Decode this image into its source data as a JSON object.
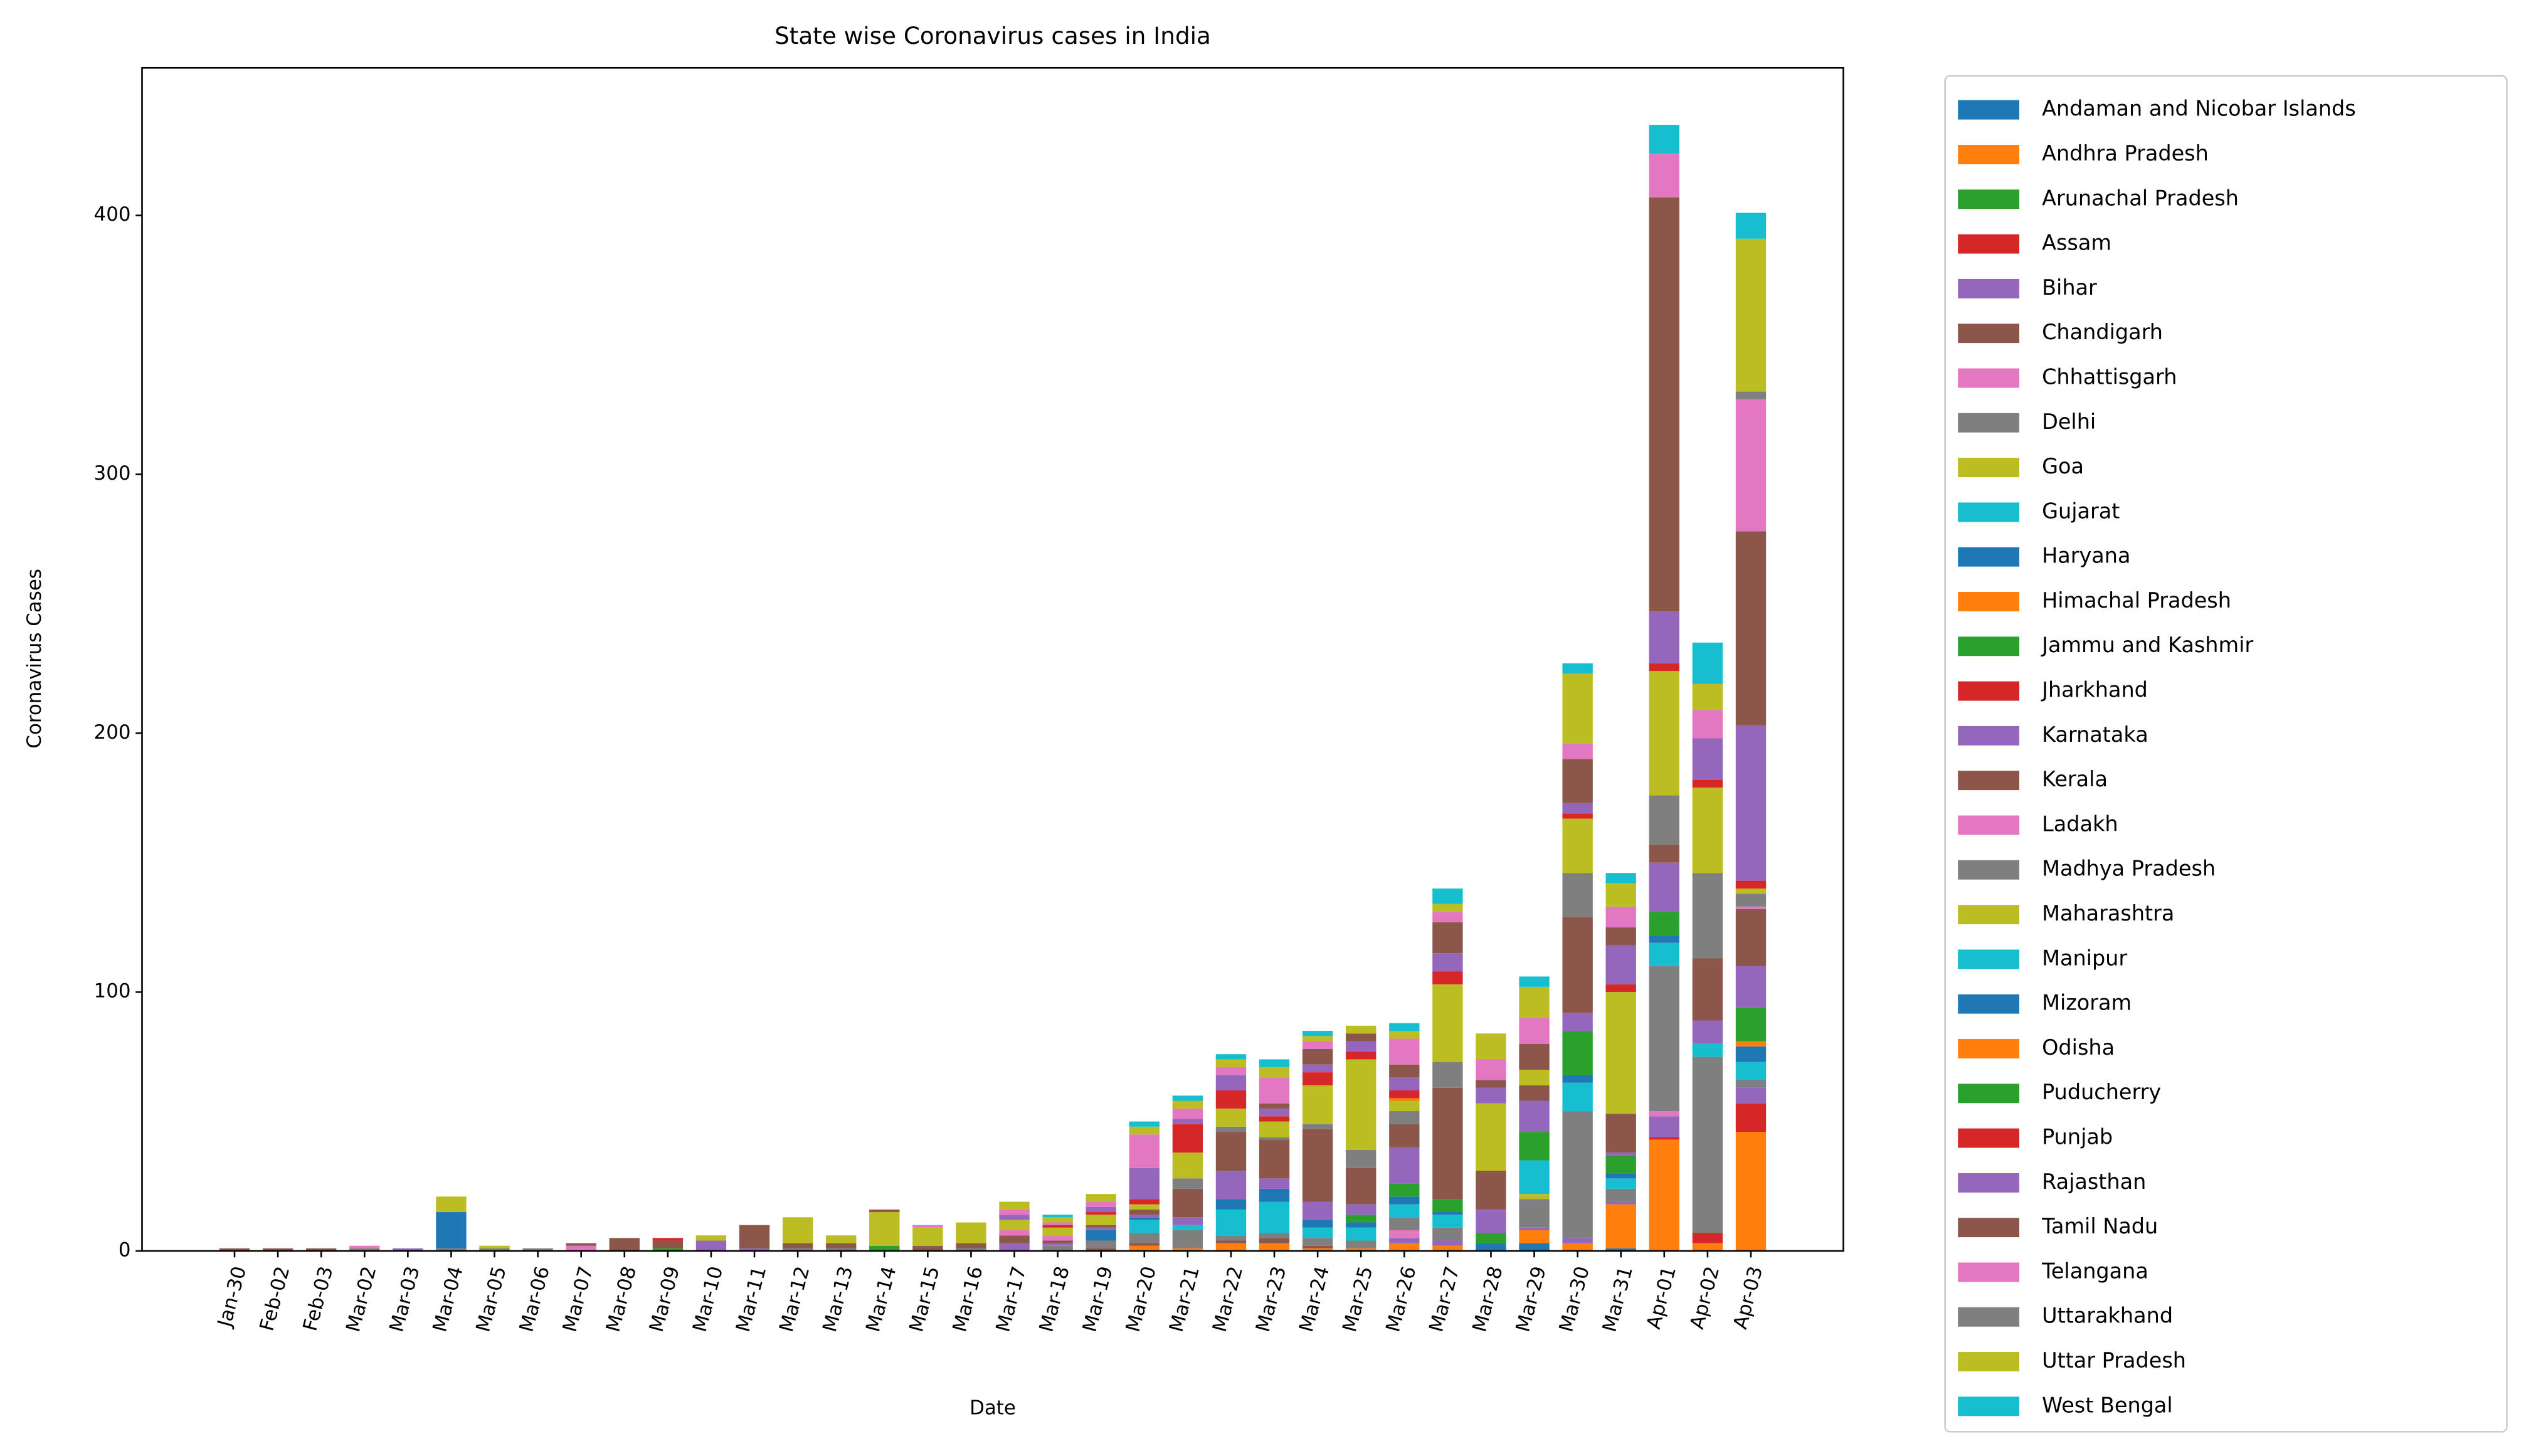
{
  "chart_data": {
    "type": "stacked_bar",
    "title": "State wise Coronavirus cases in India",
    "x_label": "Date",
    "y_label": "Coronavirus Cases",
    "categories": [
      "Jan-30",
      "Feb-02",
      "Feb-03",
      "Mar-02",
      "Mar-03",
      "Mar-04",
      "Mar-05",
      "Mar-06",
      "Mar-07",
      "Mar-08",
      "Mar-09",
      "Mar-10",
      "Mar-11",
      "Mar-12",
      "Mar-13",
      "Mar-14",
      "Mar-15",
      "Mar-16",
      "Mar-17",
      "Mar-18",
      "Mar-19",
      "Mar-20",
      "Mar-21",
      "Mar-22",
      "Mar-23",
      "Mar-24",
      "Mar-25",
      "Mar-26",
      "Mar-27",
      "Mar-28",
      "Mar-29",
      "Mar-30",
      "Mar-31",
      "Apr-01",
      "Apr-02",
      "Apr-03"
    ],
    "ylim": [
      0,
      457
    ],
    "yticks": [
      0,
      100,
      200,
      300,
      400
    ],
    "grid": false,
    "legend": "outside-right",
    "series": [
      {
        "name": "Andaman and Nicobar Islands",
        "color": "#1f77b4",
        "values": [
          0,
          0,
          0,
          0,
          0,
          0,
          0,
          0,
          0,
          0,
          0,
          0,
          0,
          0,
          0,
          0,
          0,
          0,
          0,
          0,
          0,
          0,
          0,
          0,
          0,
          0,
          0,
          0,
          0,
          0,
          3,
          0,
          1,
          0,
          0,
          0
        ]
      },
      {
        "name": "Andhra Pradesh",
        "color": "#ff7f0e",
        "values": [
          0,
          0,
          0,
          0,
          0,
          0,
          0,
          0,
          0,
          0,
          0,
          0,
          0,
          0,
          0,
          0,
          0,
          0,
          0,
          0,
          0,
          2,
          1,
          3,
          3,
          1,
          1,
          3,
          2,
          0,
          5,
          3,
          17,
          43,
          3,
          46
        ]
      },
      {
        "name": "Arunachal Pradesh",
        "color": "#2ca02c",
        "values": [
          0,
          0,
          0,
          0,
          0,
          0,
          0,
          0,
          0,
          0,
          0,
          0,
          0,
          0,
          0,
          0,
          0,
          0,
          0,
          0,
          0,
          0,
          0,
          0,
          0,
          0,
          0,
          0,
          0,
          0,
          0,
          0,
          0,
          0,
          0,
          0
        ]
      },
      {
        "name": "Assam",
        "color": "#d62728",
        "values": [
          0,
          0,
          0,
          0,
          0,
          0,
          0,
          0,
          0,
          0,
          0,
          0,
          0,
          0,
          0,
          0,
          0,
          0,
          0,
          0,
          0,
          0,
          0,
          0,
          0,
          0,
          0,
          0,
          0,
          0,
          0,
          0,
          0,
          1,
          4,
          11
        ]
      },
      {
        "name": "Bihar",
        "color": "#9467bd",
        "values": [
          0,
          0,
          0,
          0,
          0,
          0,
          0,
          0,
          0,
          0,
          0,
          0,
          0,
          0,
          0,
          0,
          0,
          0,
          0,
          0,
          0,
          0,
          0,
          0,
          0,
          0,
          0,
          2,
          2,
          0,
          1,
          2,
          1,
          8,
          0,
          6
        ]
      },
      {
        "name": "Chandigarh",
        "color": "#8c564b",
        "values": [
          0,
          0,
          0,
          0,
          0,
          0,
          0,
          0,
          0,
          0,
          0,
          0,
          0,
          0,
          0,
          0,
          0,
          0,
          0,
          0,
          1,
          1,
          0,
          1,
          2,
          1,
          0,
          0,
          0,
          0,
          0,
          0,
          0,
          0,
          0,
          0
        ]
      },
      {
        "name": "Chhattisgarh",
        "color": "#e377c2",
        "values": [
          0,
          0,
          0,
          0,
          0,
          0,
          0,
          0,
          0,
          0,
          0,
          0,
          0,
          0,
          0,
          0,
          0,
          0,
          0,
          0,
          0,
          0,
          0,
          0,
          0,
          0,
          0,
          3,
          0,
          0,
          0,
          0,
          0,
          2,
          0,
          0
        ]
      },
      {
        "name": "Delhi",
        "color": "#7f7f7f",
        "values": [
          0,
          0,
          0,
          1,
          0,
          1,
          1,
          1,
          0,
          0,
          0,
          0,
          0,
          1,
          1,
          0,
          0,
          1,
          0,
          2,
          3,
          4,
          7,
          2,
          2,
          3,
          3,
          5,
          5,
          0,
          11,
          49,
          5,
          56,
          68,
          3
        ]
      },
      {
        "name": "Goa",
        "color": "#bcbd22",
        "values": [
          0,
          0,
          0,
          0,
          0,
          0,
          0,
          0,
          0,
          0,
          0,
          0,
          0,
          0,
          0,
          0,
          0,
          0,
          0,
          0,
          0,
          0,
          0,
          0,
          0,
          0,
          0,
          0,
          0,
          0,
          2,
          0,
          0,
          0,
          0,
          0
        ]
      },
      {
        "name": "Gujarat",
        "color": "#17becf",
        "values": [
          0,
          0,
          0,
          0,
          0,
          0,
          0,
          0,
          0,
          0,
          0,
          0,
          0,
          0,
          0,
          0,
          0,
          0,
          0,
          0,
          0,
          5,
          2,
          10,
          12,
          4,
          5,
          5,
          5,
          0,
          13,
          11,
          4,
          9,
          5,
          7
        ]
      },
      {
        "name": "Haryana",
        "color": "#1f77b4",
        "values": [
          0,
          0,
          0,
          0,
          0,
          14,
          0,
          0,
          0,
          0,
          0,
          0,
          0,
          0,
          0,
          0,
          0,
          0,
          0,
          0,
          4,
          1,
          0,
          4,
          5,
          3,
          2,
          3,
          1,
          3,
          0,
          3,
          2,
          3,
          0,
          6
        ]
      },
      {
        "name": "Himachal Pradesh",
        "color": "#ff7f0e",
        "values": [
          0,
          0,
          0,
          0,
          0,
          0,
          0,
          0,
          0,
          0,
          0,
          0,
          0,
          0,
          0,
          0,
          0,
          0,
          0,
          0,
          0,
          0,
          0,
          0,
          0,
          0,
          0,
          0,
          0,
          0,
          0,
          0,
          0,
          0,
          0,
          2
        ]
      },
      {
        "name": "Jammu and Kashmir",
        "color": "#2ca02c",
        "values": [
          0,
          0,
          0,
          0,
          0,
          0,
          0,
          0,
          0,
          0,
          1,
          0,
          0,
          0,
          0,
          2,
          0,
          0,
          0,
          0,
          0,
          0,
          0,
          0,
          0,
          0,
          3,
          5,
          5,
          4,
          11,
          17,
          7,
          9,
          0,
          13
        ]
      },
      {
        "name": "Jharkhand",
        "color": "#d62728",
        "values": [
          0,
          0,
          0,
          0,
          0,
          0,
          0,
          0,
          0,
          0,
          0,
          0,
          0,
          0,
          0,
          0,
          0,
          0,
          0,
          0,
          0,
          0,
          0,
          0,
          0,
          0,
          0,
          0,
          0,
          0,
          0,
          0,
          0,
          0,
          0,
          0
        ]
      },
      {
        "name": "Karnataka",
        "color": "#9467bd",
        "values": [
          0,
          0,
          0,
          0,
          0,
          0,
          0,
          0,
          0,
          0,
          0,
          4,
          1,
          0,
          0,
          0,
          0,
          0,
          3,
          1,
          1,
          1,
          3,
          11,
          4,
          7,
          4,
          14,
          0,
          9,
          12,
          7,
          1,
          19,
          9,
          16
        ]
      },
      {
        "name": "Kerala",
        "color": "#8c564b",
        "values": [
          1,
          1,
          1,
          0,
          0,
          0,
          0,
          0,
          0,
          5,
          3,
          0,
          9,
          2,
          2,
          0,
          2,
          2,
          3,
          1,
          1,
          2,
          11,
          15,
          15,
          28,
          14,
          9,
          43,
          15,
          6,
          37,
          15,
          7,
          24,
          22
        ]
      },
      {
        "name": "Ladakh",
        "color": "#e377c2",
        "values": [
          0,
          0,
          0,
          0,
          0,
          0,
          0,
          0,
          2,
          0,
          0,
          0,
          0,
          0,
          0,
          0,
          0,
          0,
          2,
          2,
          0,
          0,
          0,
          0,
          0,
          0,
          0,
          0,
          0,
          0,
          0,
          0,
          0,
          0,
          0,
          1
        ]
      },
      {
        "name": "Madhya Pradesh",
        "color": "#7f7f7f",
        "values": [
          0,
          0,
          0,
          0,
          0,
          0,
          0,
          0,
          0,
          0,
          0,
          0,
          0,
          0,
          0,
          0,
          0,
          0,
          0,
          0,
          0,
          0,
          4,
          2,
          1,
          2,
          7,
          5,
          10,
          0,
          0,
          17,
          0,
          19,
          33,
          5
        ]
      },
      {
        "name": "Maharashtra",
        "color": "#bcbd22",
        "values": [
          0,
          0,
          0,
          0,
          0,
          0,
          0,
          0,
          0,
          0,
          0,
          2,
          0,
          10,
          3,
          13,
          7,
          8,
          4,
          3,
          4,
          2,
          10,
          7,
          6,
          15,
          35,
          4,
          30,
          26,
          6,
          21,
          47,
          48,
          33,
          2
        ]
      },
      {
        "name": "Manipur",
        "color": "#17becf",
        "values": [
          0,
          0,
          0,
          0,
          0,
          0,
          0,
          0,
          0,
          0,
          0,
          0,
          0,
          0,
          0,
          0,
          0,
          0,
          0,
          0,
          0,
          0,
          0,
          0,
          0,
          0,
          0,
          0,
          0,
          0,
          0,
          0,
          0,
          0,
          0,
          0
        ]
      },
      {
        "name": "Mizoram",
        "color": "#1f77b4",
        "values": [
          0,
          0,
          0,
          0,
          0,
          0,
          0,
          0,
          0,
          0,
          0,
          0,
          0,
          0,
          0,
          0,
          0,
          0,
          0,
          0,
          0,
          0,
          0,
          0,
          0,
          0,
          0,
          0,
          0,
          0,
          0,
          0,
          0,
          0,
          0,
          0
        ]
      },
      {
        "name": "Odisha",
        "color": "#ff7f0e",
        "values": [
          0,
          0,
          0,
          0,
          0,
          0,
          0,
          0,
          0,
          0,
          0,
          0,
          0,
          0,
          0,
          0,
          0,
          0,
          0,
          0,
          0,
          0,
          0,
          0,
          0,
          0,
          0,
          1,
          0,
          0,
          0,
          0,
          0,
          0,
          0,
          0
        ]
      },
      {
        "name": "Puducherry",
        "color": "#2ca02c",
        "values": [
          0,
          0,
          0,
          0,
          0,
          0,
          0,
          0,
          0,
          0,
          0,
          0,
          0,
          0,
          0,
          0,
          0,
          0,
          0,
          0,
          0,
          0,
          0,
          0,
          0,
          0,
          0,
          0,
          0,
          0,
          0,
          0,
          0,
          0,
          0,
          0
        ]
      },
      {
        "name": "Punjab",
        "color": "#d62728",
        "values": [
          0,
          0,
          0,
          0,
          0,
          0,
          0,
          0,
          0,
          0,
          1,
          0,
          0,
          0,
          0,
          0,
          0,
          0,
          0,
          1,
          1,
          2,
          11,
          7,
          2,
          5,
          3,
          3,
          5,
          0,
          0,
          2,
          3,
          3,
          3,
          3
        ]
      },
      {
        "name": "Rajasthan",
        "color": "#9467bd",
        "values": [
          0,
          0,
          0,
          0,
          1,
          0,
          0,
          0,
          0,
          0,
          0,
          0,
          0,
          0,
          0,
          0,
          0,
          0,
          2,
          0,
          2,
          12,
          2,
          6,
          3,
          3,
          4,
          5,
          7,
          6,
          0,
          4,
          15,
          20,
          16,
          60
        ]
      },
      {
        "name": "Tamil Nadu",
        "color": "#8c564b",
        "values": [
          0,
          0,
          0,
          0,
          0,
          0,
          0,
          0,
          1,
          0,
          0,
          0,
          0,
          0,
          0,
          1,
          0,
          0,
          0,
          0,
          0,
          0,
          0,
          0,
          2,
          6,
          3,
          5,
          12,
          3,
          10,
          17,
          7,
          160,
          0,
          75
        ]
      },
      {
        "name": "Telangana",
        "color": "#e377c2",
        "values": [
          0,
          0,
          0,
          1,
          0,
          0,
          0,
          0,
          0,
          0,
          0,
          0,
          0,
          0,
          0,
          0,
          1,
          0,
          2,
          1,
          2,
          13,
          4,
          3,
          10,
          3,
          0,
          10,
          4,
          8,
          10,
          6,
          8,
          17,
          11,
          51
        ]
      },
      {
        "name": "Uttarakhand",
        "color": "#7f7f7f",
        "values": [
          0,
          0,
          0,
          0,
          0,
          0,
          0,
          0,
          0,
          0,
          0,
          0,
          0,
          0,
          0,
          0,
          0,
          0,
          0,
          0,
          0,
          0,
          0,
          0,
          0,
          0,
          0,
          0,
          0,
          0,
          0,
          0,
          0,
          0,
          0,
          3
        ]
      },
      {
        "name": "Uttar Pradesh",
        "color": "#bcbd22",
        "values": [
          0,
          0,
          0,
          0,
          0,
          6,
          1,
          0,
          0,
          0,
          0,
          0,
          0,
          0,
          0,
          0,
          0,
          0,
          3,
          2,
          3,
          3,
          3,
          3,
          4,
          2,
          3,
          3,
          3,
          10,
          12,
          27,
          9,
          0,
          10,
          59
        ]
      },
      {
        "name": "West Bengal",
        "color": "#17becf",
        "values": [
          0,
          0,
          0,
          0,
          0,
          0,
          0,
          0,
          0,
          0,
          0,
          0,
          0,
          0,
          0,
          0,
          0,
          0,
          0,
          1,
          0,
          2,
          2,
          2,
          3,
          2,
          0,
          3,
          6,
          0,
          4,
          4,
          4,
          11,
          16,
          10
        ]
      }
    ]
  }
}
